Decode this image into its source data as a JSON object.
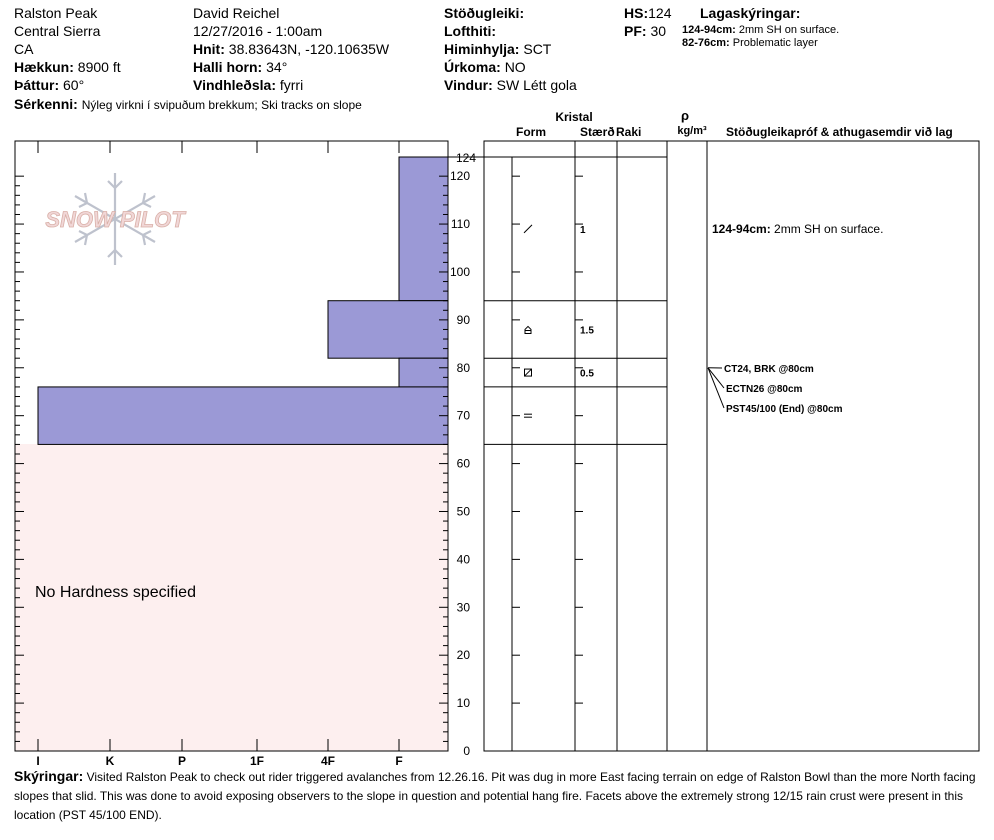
{
  "header": {
    "location": "Ralston Peak",
    "range": "Central Sierra",
    "state": "CA",
    "elevation_label": "Hækkun:",
    "elevation": "8900 ft",
    "aspect_label": "Þáttur:",
    "aspect": "60°",
    "features_label": "Sérkenni:",
    "features": "Nýleg virkni í svipuðum brekkum; Ski tracks on slope",
    "observer": "David Reichel",
    "datetime": "12/27/2016 - 1:00am",
    "coords_label": "Hnit:",
    "coords": "38.83643N, -120.10635W",
    "slope_label": "Halli horn:",
    "slope": "34°",
    "wind_loading_label": "Vindhleðsla:",
    "wind_loading": "fyrri",
    "stability_label": "Stöðugleiki:",
    "air_temp_label": "Lofthiti:",
    "sky_label": "Himinhylja:",
    "sky": "SCT",
    "precip_label": "Úrkoma:",
    "precip": "NO",
    "wind_label": "Vindur:",
    "wind": "SW Létt gola",
    "hs_label": "HS:",
    "hs": "124",
    "pf_label": "PF:",
    "pf": "30",
    "layers_label": "Lagaskýringar:",
    "layer_notes": [
      {
        "range": "124-94cm:",
        "text": "2mm SH on surface."
      },
      {
        "range": "82-76cm:",
        "text": "Problematic layer"
      }
    ]
  },
  "logo_text": "SNOW PILOT",
  "columns": {
    "crystal": "Kristal",
    "form": "Form",
    "size": "Stærð",
    "moisture": "Raki",
    "rho": "ρ",
    "density_unit": "kg/m³",
    "tests": "Stöðugleikapróf & athugasemdir við lag"
  },
  "no_hardness_text": "No Hardness specified",
  "comments_label": "Skýringar:",
  "comments": "Visited Ralston Peak to check out rider triggered avalanches from 12.26.16. Pit was dug in more East facing terrain on edge of Ralston Bowl than the more North facing slopes that slid. This was done to avoid exposing observers to the slope in question and potential hang fire. Facets above the extremely strong 12/15 rain crust were present in this location (PST 45/100 END).",
  "chart_data": {
    "type": "snow_profile",
    "depth_unit": "cm",
    "depth_range": [
      0,
      124
    ],
    "depth_ticks": [
      0,
      10,
      20,
      30,
      40,
      50,
      60,
      70,
      80,
      90,
      100,
      110,
      120
    ],
    "total_depth_label": "124",
    "hardness_scale": [
      "I",
      "K",
      "P",
      "1F",
      "4F",
      "F"
    ],
    "layers": [
      {
        "top": 124,
        "bottom": 94,
        "hardness": "F",
        "form": "surface-hoar",
        "size": "1"
      },
      {
        "top": 94,
        "bottom": 82,
        "hardness": "4F",
        "form": "depth-hoar",
        "size": "1.5"
      },
      {
        "top": 82,
        "bottom": 76,
        "hardness": "F",
        "form": "faceted",
        "size": "0.5"
      },
      {
        "top": 76,
        "bottom": 64,
        "hardness": "I",
        "form": "rounded",
        "size": ""
      }
    ],
    "layer_comments": [
      {
        "depth": 109,
        "range": "124-94cm:",
        "text": "2mm SH on surface."
      }
    ],
    "tests": [
      {
        "depth": 80,
        "text": "CT24, BRK @80cm"
      },
      {
        "depth": 80,
        "text": "ECTN26 @80cm"
      },
      {
        "depth": 80,
        "text": "PST45/100 (End) @80cm"
      }
    ],
    "colors": {
      "hardness_fill": "#9B99D6",
      "no_hardness_fill": "#FDEFEF"
    }
  }
}
